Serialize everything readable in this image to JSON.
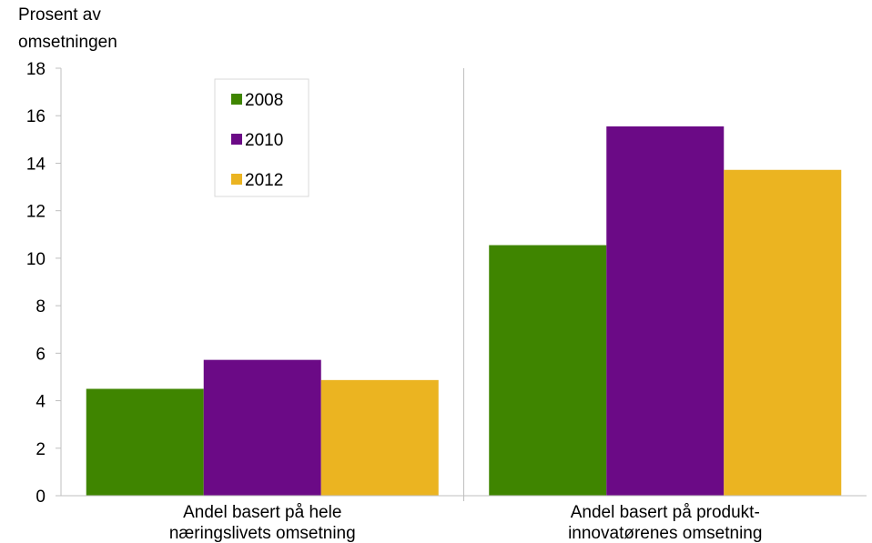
{
  "chart_data": {
    "type": "bar",
    "ylabel_lines": [
      "Prosent av",
      "omsetningen"
    ],
    "ylim": [
      0,
      18
    ],
    "yticks": [
      0,
      2,
      4,
      6,
      8,
      10,
      12,
      14,
      16,
      18
    ],
    "categories": [
      [
        "Andel basert på hele",
        "næringslivets omsetning"
      ],
      [
        "Andel basert på produkt-",
        "innovatørenes omsetning"
      ]
    ],
    "series": [
      {
        "name": "2008",
        "color": "#3f8500",
        "values": [
          4.5,
          10.55
        ]
      },
      {
        "name": "2010",
        "color": "#6b0a86",
        "values": [
          5.72,
          15.55
        ]
      },
      {
        "name": "2012",
        "color": "#ebb421",
        "values": [
          4.87,
          13.72
        ]
      }
    ],
    "legend_position": "top-left-inside",
    "grid": false,
    "category_separator": true
  }
}
